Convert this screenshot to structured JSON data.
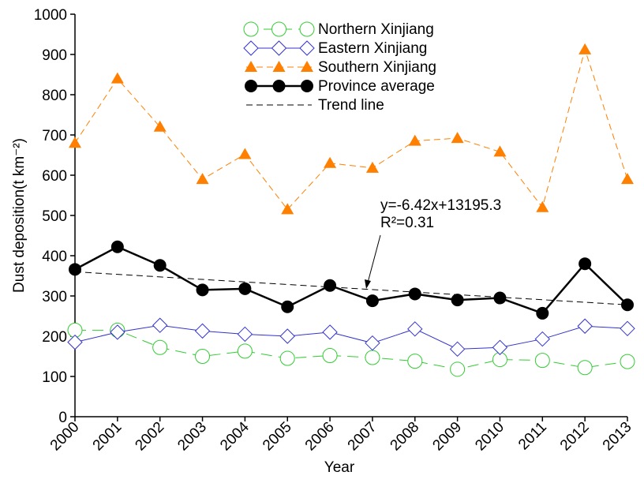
{
  "chart_data": {
    "type": "line",
    "x_label": "Year",
    "y_label": "Dust deposition(t km⁻²)",
    "x": [
      2000,
      2001,
      2002,
      2003,
      2004,
      2005,
      2006,
      2007,
      2008,
      2009,
      2010,
      2011,
      2012,
      2013
    ],
    "xlim": [
      2000,
      2013
    ],
    "xticks": [
      2000,
      2001,
      2002,
      2003,
      2004,
      2005,
      2006,
      2007,
      2008,
      2009,
      2010,
      2011,
      2012,
      2013
    ],
    "ylim": [
      0,
      1000
    ],
    "yticks": [
      0,
      100,
      200,
      300,
      400,
      500,
      600,
      700,
      800,
      900,
      1000
    ],
    "series": [
      {
        "name": "Northern Xinjiang",
        "color": "#33cc33",
        "marker": "circle-open",
        "dash": "14 8",
        "width": 1,
        "values": [
          215,
          215,
          172,
          150,
          163,
          145,
          152,
          147,
          138,
          118,
          142,
          140,
          122,
          137
        ]
      },
      {
        "name": "Eastern Xinjiang",
        "color": "#3333cc",
        "marker": "diamond-open",
        "dash": "none",
        "width": 1,
        "values": [
          185,
          210,
          227,
          213,
          205,
          200,
          210,
          183,
          218,
          168,
          172,
          193,
          225,
          219
        ]
      },
      {
        "name": "Southern Xinjiang",
        "color": "#ff7f00",
        "marker": "triangle",
        "dash": "8 5",
        "width": 1,
        "values": [
          680,
          840,
          720,
          590,
          652,
          515,
          630,
          618,
          685,
          692,
          658,
          520,
          912,
          590
        ]
      },
      {
        "name": "Province average",
        "color": "#000000",
        "marker": "circle",
        "dash": "none",
        "width": 2.5,
        "values": [
          366,
          422,
          376,
          315,
          318,
          273,
          326,
          288,
          305,
          290,
          295,
          257,
          380,
          278
        ]
      },
      {
        "name": "Trend line",
        "color": "#000000",
        "marker": "none",
        "dash": "8 5",
        "width": 1,
        "x": [
          2000,
          2013
        ],
        "values": [
          360,
          278
        ]
      }
    ],
    "annotations": [
      "y=-6.42x+13195.3",
      "R²=0.31"
    ]
  }
}
